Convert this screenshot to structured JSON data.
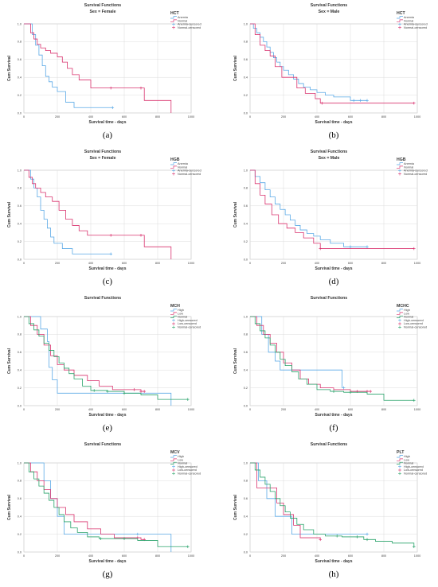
{
  "palette": {
    "anemia": "#5aa9e6",
    "normal": "#d9336e",
    "high": "#5aa9e6",
    "low": "#d9336e",
    "normal3": "#2aa36b"
  },
  "chart_data": [
    {
      "type": "line",
      "step": true,
      "caption": "(a)",
      "title": "Survival Functions",
      "subtitle": "Sex = Female",
      "xlabel": "Survival time - days",
      "ylabel": "Cum Survival",
      "xlim": [
        0,
        1000
      ],
      "ylim": [
        0,
        1.0
      ],
      "xticks": [
        "0",
        "200",
        "400",
        "600",
        "800",
        "1000"
      ],
      "yticks": [
        "0.0",
        "0.2",
        "0.4",
        "0.6",
        "0.8",
        "1.0"
      ],
      "legend_title": "HCT",
      "legend_position": "top-right",
      "legend": [
        "Anemia",
        "Normal",
        "Anemia-censored",
        "Normal-censored"
      ],
      "series": [
        {
          "name": "Anemia",
          "color": "#5aa9e6",
          "x": [
            0,
            50,
            70,
            90,
            110,
            130,
            150,
            170,
            200,
            250,
            300,
            530
          ],
          "y": [
            1.0,
            0.88,
            0.76,
            0.65,
            0.53,
            0.41,
            0.35,
            0.29,
            0.24,
            0.12,
            0.06,
            0.06
          ],
          "censored_x": [
            530
          ]
        },
        {
          "name": "Normal",
          "color": "#d9336e",
          "x": [
            0,
            40,
            60,
            80,
            100,
            130,
            160,
            200,
            230,
            260,
            290,
            330,
            400,
            700,
            700,
            720,
            880
          ],
          "y": [
            1.0,
            0.9,
            0.83,
            0.77,
            0.73,
            0.7,
            0.67,
            0.63,
            0.57,
            0.5,
            0.43,
            0.37,
            0.28,
            0.28,
            0.28,
            0.14,
            0.0
          ],
          "censored_x": [
            520,
            700
          ]
        }
      ]
    },
    {
      "type": "line",
      "step": true,
      "caption": "(b)",
      "title": "Survival Functions",
      "subtitle": "Sex = Male",
      "xlabel": "Survival time - days",
      "ylabel": "Cum Survival",
      "xlim": [
        0,
        1000
      ],
      "ylim": [
        0,
        1.0
      ],
      "xticks": [
        "0",
        "200",
        "400",
        "600",
        "800",
        "1000"
      ],
      "yticks": [
        "0.0",
        "0.2",
        "0.4",
        "0.6",
        "0.8",
        "1.0"
      ],
      "legend_title": "HCT",
      "legend_position": "top-right",
      "legend": [
        "Anemia",
        "Normal",
        "Anemia-censored",
        "Normal-censored"
      ],
      "series": [
        {
          "name": "Anemia",
          "color": "#5aa9e6",
          "x": [
            0,
            20,
            40,
            60,
            80,
            100,
            120,
            140,
            160,
            180,
            200,
            230,
            260,
            290,
            320,
            360,
            400,
            450,
            500,
            600,
            700
          ],
          "y": [
            1.0,
            0.95,
            0.9,
            0.85,
            0.8,
            0.74,
            0.68,
            0.62,
            0.57,
            0.52,
            0.48,
            0.43,
            0.38,
            0.33,
            0.29,
            0.26,
            0.23,
            0.2,
            0.18,
            0.14,
            0.14
          ],
          "censored_x": [
            620,
            660,
            700
          ]
        },
        {
          "name": "Normal",
          "color": "#d9336e",
          "x": [
            0,
            30,
            60,
            90,
            120,
            150,
            190,
            230,
            280,
            330,
            390,
            420,
            980
          ],
          "y": [
            1.0,
            0.88,
            0.76,
            0.7,
            0.64,
            0.52,
            0.4,
            0.4,
            0.28,
            0.22,
            0.16,
            0.11,
            0.11
          ],
          "censored_x": [
            430,
            980
          ]
        }
      ]
    },
    {
      "type": "line",
      "step": true,
      "caption": "(c)",
      "title": "Survival Functions",
      "subtitle": "Sex = Female",
      "xlabel": "Survival time - days",
      "ylabel": "Cum Survival",
      "xlim": [
        0,
        1000
      ],
      "ylim": [
        0,
        1.0
      ],
      "xticks": [
        "0",
        "200",
        "400",
        "600",
        "800",
        "1000"
      ],
      "yticks": [
        "0.0",
        "0.2",
        "0.4",
        "0.6",
        "0.8",
        "1.0"
      ],
      "legend_title": "HGB",
      "legend_position": "top-right",
      "legend": [
        "Anemia",
        "Normal",
        "Anemia-censored",
        "Normal-censored"
      ],
      "series": [
        {
          "name": "Anemia",
          "color": "#5aa9e6",
          "x": [
            0,
            40,
            60,
            80,
            100,
            120,
            140,
            160,
            180,
            230,
            290,
            520
          ],
          "y": [
            1.0,
            0.9,
            0.8,
            0.7,
            0.55,
            0.45,
            0.35,
            0.25,
            0.18,
            0.12,
            0.06,
            0.06
          ],
          "censored_x": [
            520
          ]
        },
        {
          "name": "Normal",
          "color": "#d9336e",
          "x": [
            0,
            30,
            50,
            70,
            100,
            130,
            170,
            210,
            250,
            290,
            330,
            380,
            700,
            720,
            880
          ],
          "y": [
            1.0,
            0.92,
            0.85,
            0.8,
            0.75,
            0.7,
            0.65,
            0.55,
            0.45,
            0.38,
            0.32,
            0.27,
            0.27,
            0.14,
            0.0
          ],
          "censored_x": [
            520,
            700
          ]
        }
      ]
    },
    {
      "type": "line",
      "step": true,
      "caption": "(d)",
      "title": "Survival Functions",
      "subtitle": "Sex = Male",
      "xlabel": "Survival time - days",
      "ylabel": "Cum Survival",
      "xlim": [
        0,
        1000
      ],
      "ylim": [
        0,
        1.0
      ],
      "xticks": [
        "0",
        "200",
        "400",
        "600",
        "800",
        "1000"
      ],
      "yticks": [
        "0.0",
        "0.2",
        "0.4",
        "0.6",
        "0.8",
        "1.0"
      ],
      "legend_title": "HGB",
      "legend_position": "top-right",
      "legend": [
        "Anemia",
        "Normal",
        "Anemia-censored",
        "Normal-censored"
      ],
      "series": [
        {
          "name": "Anemia",
          "color": "#5aa9e6",
          "x": [
            0,
            30,
            60,
            90,
            120,
            150,
            180,
            210,
            240,
            270,
            300,
            340,
            380,
            420,
            480,
            560,
            700
          ],
          "y": [
            1.0,
            0.93,
            0.86,
            0.78,
            0.7,
            0.62,
            0.56,
            0.5,
            0.44,
            0.38,
            0.33,
            0.29,
            0.26,
            0.22,
            0.18,
            0.14,
            0.14
          ],
          "censored_x": [
            600,
            700
          ]
        },
        {
          "name": "Normal",
          "color": "#d9336e",
          "x": [
            0,
            30,
            60,
            90,
            130,
            170,
            220,
            270,
            320,
            380,
            420,
            980
          ],
          "y": [
            1.0,
            0.85,
            0.72,
            0.62,
            0.5,
            0.4,
            0.35,
            0.3,
            0.24,
            0.18,
            0.12,
            0.12
          ],
          "censored_x": [
            420,
            980
          ]
        }
      ]
    },
    {
      "type": "line",
      "step": true,
      "caption": "(e)",
      "title": "Survival Functions",
      "subtitle": "",
      "xlabel": "Survival time - days",
      "ylabel": "Cum Survival",
      "xlim": [
        0,
        1000
      ],
      "ylim": [
        0,
        1.0
      ],
      "xticks": [
        "0",
        "200",
        "400",
        "600",
        "800",
        "1000"
      ],
      "yticks": [
        "0.0",
        "0.2",
        "0.4",
        "0.6",
        "0.8",
        "1.0"
      ],
      "legend_title": "MCH",
      "legend_position": "top-right",
      "legend": [
        "High",
        "Low",
        "Normal",
        "High-censored",
        "Low-censored",
        "Normal-censored"
      ],
      "series": [
        {
          "name": "High",
          "color": "#5aa9e6",
          "x": [
            0,
            50,
            100,
            140,
            150,
            170,
            200,
            880,
            880
          ],
          "y": [
            1.0,
            1.0,
            0.86,
            0.72,
            0.43,
            0.29,
            0.14,
            0.14,
            0.0
          ],
          "censored_x": []
        },
        {
          "name": "Low",
          "color": "#d9336e",
          "x": [
            0,
            40,
            80,
            120,
            160,
            200,
            240,
            300,
            380,
            450,
            530,
            700,
            720
          ],
          "y": [
            1.0,
            0.9,
            0.8,
            0.68,
            0.56,
            0.46,
            0.4,
            0.34,
            0.28,
            0.22,
            0.18,
            0.16,
            0.16
          ],
          "censored_x": [
            660,
            700,
            720
          ]
        },
        {
          "name": "Normal",
          "color": "#2aa36b",
          "x": [
            0,
            30,
            60,
            90,
            120,
            150,
            180,
            210,
            240,
            270,
            300,
            350,
            400,
            500,
            600,
            700,
            800,
            980
          ],
          "y": [
            1.0,
            0.92,
            0.85,
            0.78,
            0.7,
            0.62,
            0.55,
            0.48,
            0.42,
            0.36,
            0.3,
            0.22,
            0.17,
            0.16,
            0.14,
            0.12,
            0.07,
            0.07
          ],
          "censored_x": [
            420,
            500,
            600,
            980
          ]
        }
      ]
    },
    {
      "type": "line",
      "step": true,
      "caption": "(f)",
      "title": "Survival Functions",
      "subtitle": "",
      "xlabel": "Survival time - days",
      "ylabel": "Cum Survival",
      "xlim": [
        0,
        1000
      ],
      "ylim": [
        0,
        1.0
      ],
      "xticks": [
        "0",
        "200",
        "400",
        "600",
        "800",
        "1000"
      ],
      "yticks": [
        "0.0",
        "0.2",
        "0.4",
        "0.6",
        "0.8",
        "1.0"
      ],
      "legend_title": "MCHC",
      "legend_position": "top-right",
      "legend": [
        "High",
        "Low",
        "Normal",
        "High-censored",
        "Low-censored",
        "Normal-censored"
      ],
      "series": [
        {
          "name": "High",
          "color": "#5aa9e6",
          "x": [
            0,
            70,
            110,
            150,
            180,
            200,
            530,
            550
          ],
          "y": [
            1.0,
            0.8,
            0.6,
            0.5,
            0.4,
            0.4,
            0.4,
            0.2
          ],
          "censored_x": [
            560
          ]
        },
        {
          "name": "Low",
          "color": "#d9336e",
          "x": [
            0,
            40,
            80,
            120,
            160,
            200,
            250,
            300,
            350,
            420,
            500,
            600,
            720
          ],
          "y": [
            1.0,
            0.9,
            0.8,
            0.7,
            0.6,
            0.48,
            0.4,
            0.3,
            0.24,
            0.2,
            0.18,
            0.16,
            0.16
          ],
          "censored_x": [
            640,
            700,
            720
          ]
        },
        {
          "name": "Normal",
          "color": "#2aa36b",
          "x": [
            0,
            30,
            60,
            90,
            120,
            150,
            180,
            210,
            250,
            290,
            340,
            400,
            480,
            560,
            700,
            800,
            980
          ],
          "y": [
            1.0,
            0.92,
            0.84,
            0.76,
            0.68,
            0.6,
            0.52,
            0.45,
            0.38,
            0.3,
            0.24,
            0.18,
            0.16,
            0.15,
            0.13,
            0.06,
            0.06
          ],
          "censored_x": [
            500,
            600,
            980
          ]
        }
      ]
    },
    {
      "type": "line",
      "step": true,
      "caption": "(g)",
      "title": "Survival Functions",
      "subtitle": "",
      "xlabel": "Survival time - days",
      "ylabel": "Cum Survival",
      "xlim": [
        0,
        1000
      ],
      "ylim": [
        0,
        1.0
      ],
      "xticks": [
        "0",
        "200",
        "400",
        "600",
        "800",
        "1000"
      ],
      "yticks": [
        "0.0",
        "0.2",
        "0.4",
        "0.6",
        "0.8",
        "1.0"
      ],
      "legend_title": "MCV",
      "legend_position": "top-right",
      "legend": [
        "High",
        "Low",
        "Normal",
        "High-censored",
        "Low-censored",
        "Normal-censored"
      ],
      "series": [
        {
          "name": "High",
          "color": "#5aa9e6",
          "x": [
            0,
            120,
            160,
            200,
            240,
            880,
            880
          ],
          "y": [
            1.0,
            0.8,
            0.6,
            0.4,
            0.2,
            0.2,
            0.0
          ],
          "censored_x": [
            680
          ]
        },
        {
          "name": "Low",
          "color": "#d9336e",
          "x": [
            0,
            40,
            80,
            120,
            160,
            200,
            250,
            300,
            380,
            460,
            540,
            700,
            720
          ],
          "y": [
            1.0,
            0.9,
            0.8,
            0.7,
            0.6,
            0.5,
            0.42,
            0.34,
            0.26,
            0.2,
            0.16,
            0.14,
            0.14
          ],
          "censored_x": [
            680,
            720
          ]
        },
        {
          "name": "Normal",
          "color": "#2aa36b",
          "x": [
            0,
            30,
            60,
            90,
            120,
            150,
            180,
            210,
            240,
            280,
            320,
            380,
            450,
            550,
            680,
            750,
            800,
            980
          ],
          "y": [
            1.0,
            0.9,
            0.82,
            0.74,
            0.66,
            0.58,
            0.5,
            0.42,
            0.34,
            0.27,
            0.22,
            0.17,
            0.15,
            0.15,
            0.13,
            0.13,
            0.06,
            0.06
          ],
          "censored_x": [
            460,
            600,
            980
          ]
        }
      ]
    },
    {
      "type": "line",
      "step": true,
      "caption": "(h)",
      "title": "Survival Functions",
      "subtitle": "",
      "xlabel": "Survival time - days",
      "ylabel": "Cum Survival",
      "xlim": [
        0,
        1000
      ],
      "ylim": [
        0,
        1.0
      ],
      "xticks": [
        "0",
        "200",
        "400",
        "600",
        "800",
        "1000"
      ],
      "yticks": [
        "0.0",
        "0.2",
        "0.4",
        "0.6",
        "0.8",
        "1.0"
      ],
      "legend_title": "PLT",
      "legend_position": "top-right",
      "legend": [
        "High",
        "Low",
        "Normal",
        "High-censored",
        "Low-censored",
        "Normal-censored"
      ],
      "series": [
        {
          "name": "High",
          "color": "#5aa9e6",
          "x": [
            0,
            50,
            100,
            150,
            200,
            250,
            700
          ],
          "y": [
            1.0,
            0.8,
            0.6,
            0.4,
            0.4,
            0.2,
            0.2
          ],
          "censored_x": [
            700
          ]
        },
        {
          "name": "Low",
          "color": "#d9336e",
          "x": [
            0,
            40,
            80,
            160,
            200,
            260,
            300,
            400,
            420
          ],
          "y": [
            1.0,
            0.72,
            0.72,
            0.55,
            0.42,
            0.3,
            0.16,
            0.16,
            0.14
          ],
          "censored_x": [
            420
          ]
        },
        {
          "name": "Normal",
          "color": "#2aa36b",
          "x": [
            0,
            30,
            60,
            90,
            120,
            150,
            180,
            210,
            240,
            280,
            320,
            380,
            450,
            550,
            680,
            750,
            850,
            980
          ],
          "y": [
            1.0,
            0.92,
            0.84,
            0.76,
            0.68,
            0.6,
            0.52,
            0.45,
            0.38,
            0.31,
            0.25,
            0.2,
            0.18,
            0.17,
            0.14,
            0.12,
            0.1,
            0.06
          ],
          "censored_x": [
            520,
            640,
            700,
            980
          ]
        }
      ]
    }
  ]
}
